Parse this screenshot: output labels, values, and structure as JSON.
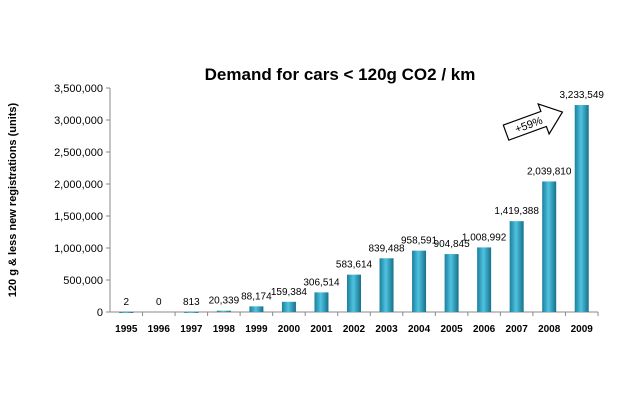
{
  "chart_data": {
    "type": "bar",
    "title": "Demand for cars < 120g CO2 / km",
    "xlabel": "",
    "ylabel": "120 g & less new registrations (units)",
    "categories": [
      "1995",
      "1996",
      "1997",
      "1998",
      "1999",
      "2000",
      "2001",
      "2002",
      "2003",
      "2004",
      "2005",
      "2006",
      "2007",
      "2008",
      "2009"
    ],
    "values": [
      2,
      0,
      813,
      20339,
      88174,
      159384,
      306514,
      583614,
      839488,
      958591,
      904845,
      1008992,
      1419388,
      2039810,
      3233549
    ],
    "data_labels": [
      "2",
      "0",
      "813",
      "20,339",
      "88,174",
      "159,384",
      "306,514",
      "583,614",
      "839,488",
      "958,591",
      "904,845",
      "1,008,992",
      "1,419,388",
      "2,039,810",
      "3,233,549"
    ],
    "ylim": [
      0,
      3500000
    ],
    "y_ticks": [
      0,
      500000,
      1000000,
      1500000,
      2000000,
      2500000,
      3000000,
      3500000
    ],
    "y_tick_labels": [
      "0",
      "500,000",
      "1,000,000",
      "1,500,000",
      "2,000,000",
      "2,500,000",
      "3,000,000",
      "3,500,000"
    ],
    "grid": false,
    "legend": "none",
    "bar_color": "#2aa3c4",
    "annotation": "+59%"
  }
}
